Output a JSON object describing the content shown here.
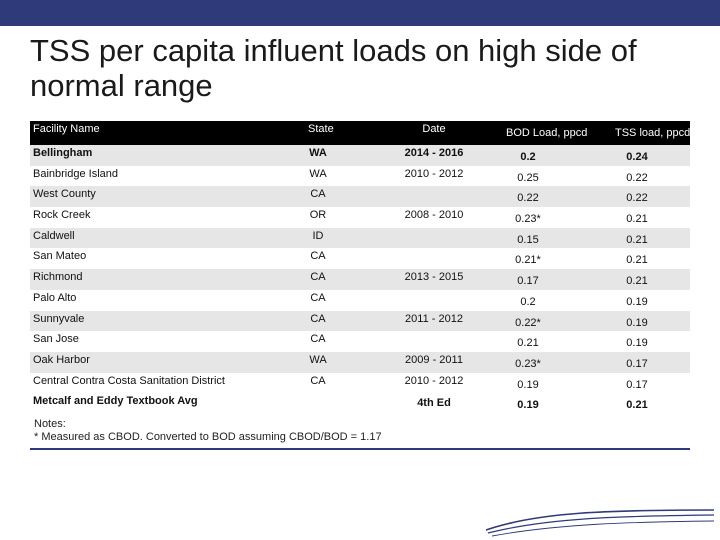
{
  "title": "TSS per capita influent loads on high side of normal range",
  "table": {
    "headers": {
      "name": "Facility Name",
      "state": "State",
      "date": "Date",
      "bod": "BOD Load, ppcd",
      "tss": "TSS load, ppcd"
    },
    "rows": [
      {
        "name": "Bellingham",
        "state": "WA",
        "date": "2014 - 2016",
        "bod": "0.2",
        "tss": "0.24"
      },
      {
        "name": "Bainbridge Island",
        "state": "WA",
        "date": "2010 - 2012",
        "bod": "0.25",
        "tss": "0.22"
      },
      {
        "name": "West County",
        "state": "CA",
        "date": "",
        "bod": "0.22",
        "tss": "0.22"
      },
      {
        "name": "Rock Creek",
        "state": "OR",
        "date": "2008 - 2010",
        "bod": "0.23*",
        "tss": "0.21"
      },
      {
        "name": "Caldwell",
        "state": "ID",
        "date": "",
        "bod": "0.15",
        "tss": "0.21"
      },
      {
        "name": "San Mateo",
        "state": "CA",
        "date": "",
        "bod": "0.21*",
        "tss": "0.21"
      },
      {
        "name": "Richmond",
        "state": "CA",
        "date": "2013 - 2015",
        "bod": "0.17",
        "tss": "0.21"
      },
      {
        "name": "Palo Alto",
        "state": "CA",
        "date": "",
        "bod": "0.2",
        "tss": "0.19"
      },
      {
        "name": "Sunnyvale",
        "state": "CA",
        "date": "2011 - 2012",
        "bod": "0.22*",
        "tss": "0.19"
      },
      {
        "name": "San Jose",
        "state": "CA",
        "date": "",
        "bod": "0.21",
        "tss": "0.19"
      },
      {
        "name": "Oak Harbor",
        "state": "WA",
        "date": "2009 - 2011",
        "bod": "0.23*",
        "tss": "0.17"
      },
      {
        "name": "Central Contra Costa Sanitation District",
        "state": "CA",
        "date": "2010 - 2012",
        "bod": "0.19",
        "tss": "0.17"
      },
      {
        "name": "Metcalf and Eddy Textbook Avg",
        "state": "",
        "date": "4th Ed",
        "bod": "0.19",
        "tss": "0.21"
      }
    ]
  },
  "notes": {
    "line1": "Notes:",
    "line2": "* Measured as CBOD. Converted to BOD assuming CBOD/BOD = 1.17"
  },
  "colors": {
    "accent": "#2f3a7a",
    "header_bg": "#000000",
    "row_shade": "#e6e6e6"
  }
}
